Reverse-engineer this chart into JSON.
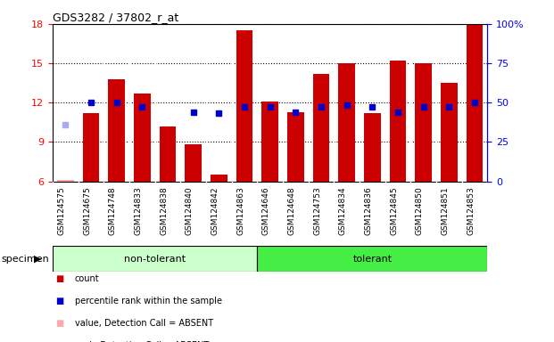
{
  "title": "GDS3282 / 37802_r_at",
  "categories": [
    "GSM124575",
    "GSM124675",
    "GSM124748",
    "GSM124833",
    "GSM124838",
    "GSM124840",
    "GSM124842",
    "GSM124863",
    "GSM124646",
    "GSM124648",
    "GSM124753",
    "GSM124834",
    "GSM124836",
    "GSM124845",
    "GSM124850",
    "GSM124851",
    "GSM124853"
  ],
  "bar_values": [
    6.1,
    11.2,
    13.8,
    12.7,
    10.2,
    8.8,
    6.5,
    17.5,
    12.1,
    11.3,
    14.2,
    15.0,
    11.2,
    15.2,
    15.0,
    13.5,
    17.9
  ],
  "bar_absent": [
    true,
    false,
    false,
    false,
    false,
    false,
    false,
    false,
    false,
    false,
    false,
    false,
    false,
    false,
    false,
    false,
    false
  ],
  "blue_dots": [
    null,
    12.0,
    12.0,
    11.7,
    null,
    11.3,
    11.2,
    11.7,
    11.7,
    11.3,
    11.7,
    11.8,
    11.7,
    11.3,
    11.7,
    11.7,
    12.0
  ],
  "blue_dot_absent": [
    10.3,
    null,
    null,
    null,
    null,
    null,
    null,
    null,
    null,
    null,
    null,
    null,
    null,
    null,
    null,
    null,
    null
  ],
  "non_tolerant_count": 8,
  "tolerant_count": 9,
  "ylim": [
    6,
    18
  ],
  "yticks": [
    6,
    9,
    12,
    15,
    18
  ],
  "y2labels": [
    "0",
    "25",
    "50",
    "75",
    "100%"
  ],
  "bar_color": "#cc0000",
  "bar_absent_color": "#ffaaaa",
  "blue_dot_color": "#0000cc",
  "blue_dot_absent_color": "#aaaaee",
  "bg_color": "#d3d3d3",
  "plot_bg": "#ffffff",
  "non_tolerant_color": "#ccffcc",
  "tolerant_color": "#44ee44",
  "specimen_label": "specimen",
  "legend_items": [
    {
      "label": "count",
      "color": "#cc0000"
    },
    {
      "label": "percentile rank within the sample",
      "color": "#0000cc"
    },
    {
      "label": "value, Detection Call = ABSENT",
      "color": "#ffaaaa"
    },
    {
      "label": "rank, Detection Call = ABSENT",
      "color": "#aaaaee"
    }
  ]
}
